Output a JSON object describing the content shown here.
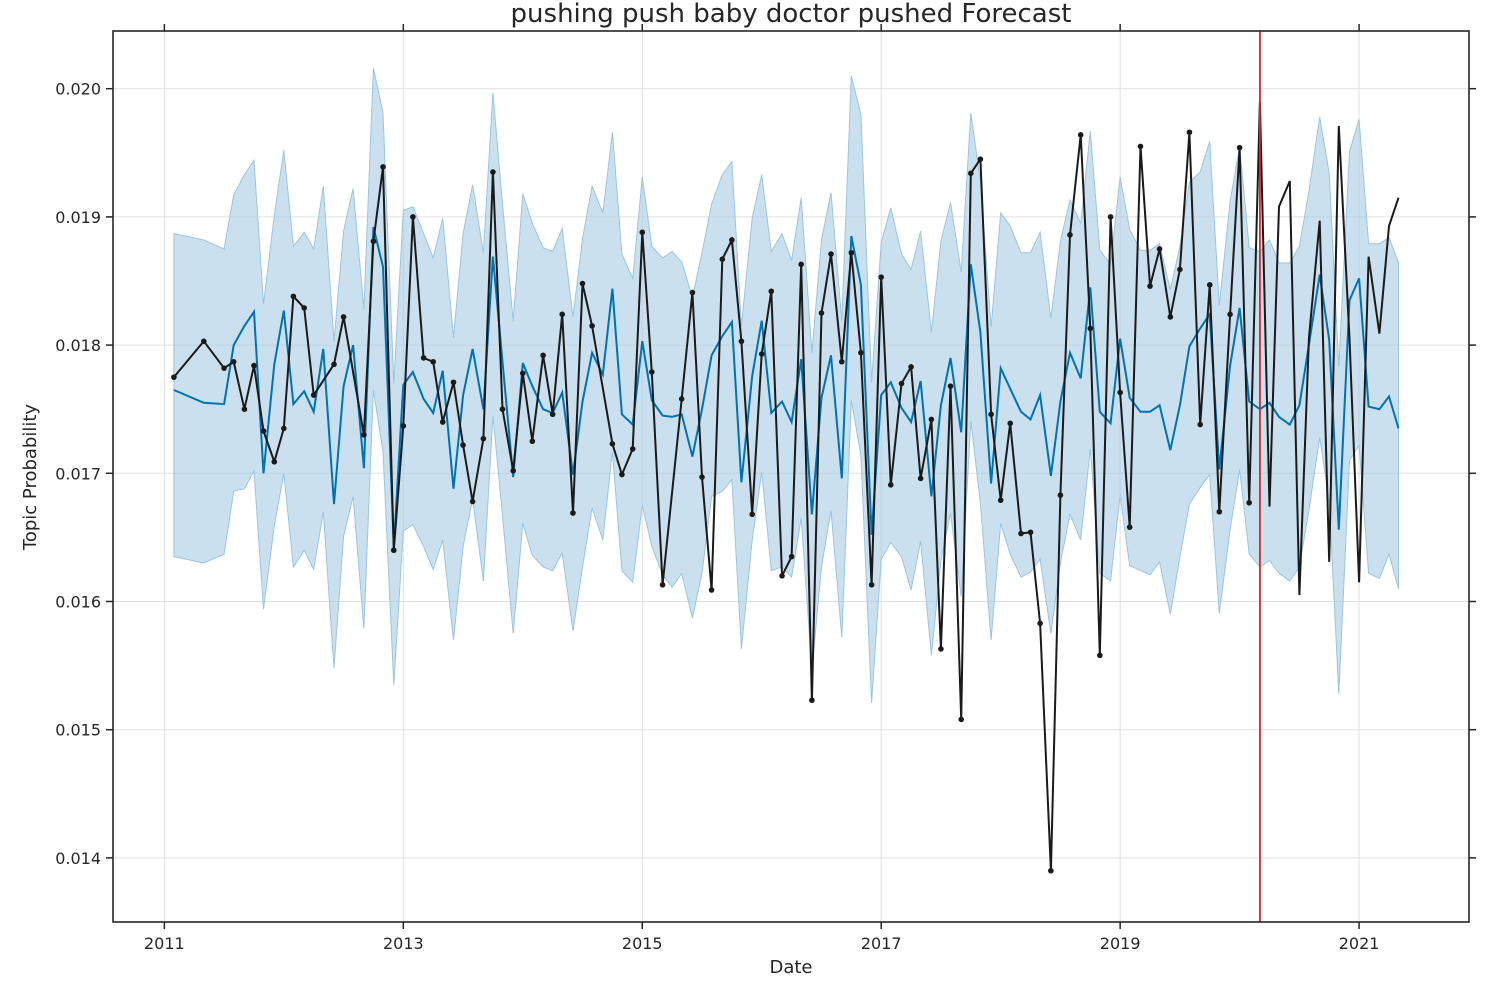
{
  "chart_data": {
    "type": "line",
    "title": "pushing push baby doctor pushed Forecast",
    "xlabel": "Date",
    "ylabel": "Topic Probability",
    "xlim": [
      2010.57,
      2021.92
    ],
    "ylim": [
      0.0135,
      0.02045
    ],
    "x_ticks": [
      2011,
      2013,
      2015,
      2017,
      2019,
      2021
    ],
    "y_ticks": [
      0.014,
      0.015,
      0.016,
      0.017,
      0.018,
      0.019,
      0.02
    ],
    "x_tick_labels": [
      "2011",
      "2013",
      "2015",
      "2017",
      "2019",
      "2021"
    ],
    "y_tick_labels": [
      "0.014",
      "0.015",
      "0.016",
      "0.017",
      "0.018",
      "0.019",
      "0.020"
    ],
    "grid": true,
    "changepoint_x": 2020.17,
    "colors": {
      "forecast": "#0072B2",
      "interval": "#a9cce3",
      "actual": "#1a1a1a",
      "changepoint": "#d62728",
      "grid": "#e0e0e0",
      "axis": "#262626"
    },
    "forecast": {
      "x": [
        2011.08,
        2011.33,
        2011.5,
        2011.58,
        2011.67,
        2011.75,
        2011.83,
        2011.92,
        2012.0,
        2012.08,
        2012.17,
        2012.25,
        2012.33,
        2012.42,
        2012.5,
        2012.58,
        2012.67,
        2012.75,
        2012.83,
        2012.92,
        2013.0,
        2013.08,
        2013.17,
        2013.25,
        2013.33,
        2013.42,
        2013.5,
        2013.58,
        2013.67,
        2013.75,
        2013.83,
        2013.92,
        2014.0,
        2014.08,
        2014.17,
        2014.25,
        2014.33,
        2014.42,
        2014.5,
        2014.58,
        2014.67,
        2014.75,
        2014.83,
        2014.92,
        2015.0,
        2015.08,
        2015.17,
        2015.25,
        2015.33,
        2015.42,
        2015.5,
        2015.58,
        2015.67,
        2015.75,
        2015.83,
        2015.92,
        2016.0,
        2016.08,
        2016.17,
        2016.25,
        2016.33,
        2016.42,
        2016.5,
        2016.58,
        2016.67,
        2016.75,
        2016.83,
        2016.92,
        2017.0,
        2017.08,
        2017.17,
        2017.25,
        2017.33,
        2017.42,
        2017.5,
        2017.58,
        2017.67,
        2017.75,
        2017.83,
        2017.92,
        2018.0,
        2018.08,
        2018.17,
        2018.25,
        2018.33,
        2018.42,
        2018.5,
        2018.58,
        2018.67,
        2018.75,
        2018.83,
        2018.92,
        2019.0,
        2019.08,
        2019.17,
        2019.25,
        2019.33,
        2019.42,
        2019.5,
        2019.58,
        2019.67,
        2019.75,
        2019.83,
        2019.92,
        2020.0,
        2020.08,
        2020.17,
        2020.25,
        2020.33,
        2020.42,
        2020.5,
        2020.58,
        2020.67,
        2020.75,
        2020.83,
        2020.92,
        2021.0,
        2021.08,
        2021.17,
        2021.25,
        2021.33
      ],
      "yhat": [
        0.01765,
        0.01755,
        0.01754,
        0.018,
        0.01815,
        0.01826,
        0.017,
        0.01785,
        0.01827,
        0.01754,
        0.01764,
        0.01748,
        0.01797,
        0.01676,
        0.01768,
        0.018,
        0.01704,
        0.01892,
        0.01861,
        0.01643,
        0.01769,
        0.01779,
        0.01758,
        0.01747,
        0.0178,
        0.01688,
        0.01761,
        0.01797,
        0.0175,
        0.01869,
        0.01787,
        0.01697,
        0.01786,
        0.01768,
        0.0175,
        0.01747,
        0.01763,
        0.01699,
        0.01756,
        0.01794,
        0.01777,
        0.01844,
        0.01746,
        0.01738,
        0.01803,
        0.01757,
        0.01745,
        0.01744,
        0.01746,
        0.01713,
        0.0175,
        0.01792,
        0.01807,
        0.01818,
        0.01693,
        0.01776,
        0.01819,
        0.01747,
        0.01756,
        0.0174,
        0.01789,
        0.01668,
        0.01759,
        0.01792,
        0.01696,
        0.01885,
        0.01847,
        0.01652,
        0.01761,
        0.01771,
        0.01751,
        0.0174,
        0.01772,
        0.01682,
        0.01753,
        0.0179,
        0.01732,
        0.01863,
        0.0181,
        0.01692,
        0.01782,
        0.01766,
        0.01748,
        0.01742,
        0.01761,
        0.01698,
        0.01756,
        0.01794,
        0.01774,
        0.01845,
        0.01748,
        0.01739,
        0.01805,
        0.01759,
        0.01748,
        0.01748,
        0.01753,
        0.01718,
        0.01753,
        0.01799,
        0.01813,
        0.01824,
        0.01703,
        0.01784,
        0.01829,
        0.01756,
        0.0175,
        0.01755,
        0.01744,
        0.01738,
        0.01753,
        0.018,
        0.01855,
        0.01804,
        0.01656,
        0.01835,
        0.01852,
        0.01752,
        0.0175,
        0.0176,
        0.01735
      ],
      "upper": [
        0.01887,
        0.01882,
        0.01875,
        0.01917,
        0.01933,
        0.01944,
        0.01832,
        0.01901,
        0.01952,
        0.01877,
        0.01888,
        0.01875,
        0.01924,
        0.01803,
        0.01889,
        0.01922,
        0.01828,
        0.02016,
        0.01981,
        0.0177,
        0.01905,
        0.01908,
        0.01887,
        0.01868,
        0.01899,
        0.01806,
        0.01887,
        0.01925,
        0.01872,
        0.01997,
        0.0191,
        0.01819,
        0.01918,
        0.01895,
        0.01876,
        0.01873,
        0.01891,
        0.01822,
        0.01883,
        0.01924,
        0.01903,
        0.01966,
        0.01871,
        0.01852,
        0.01931,
        0.01877,
        0.01868,
        0.01873,
        0.01865,
        0.01837,
        0.01872,
        0.0191,
        0.01933,
        0.01943,
        0.01815,
        0.01899,
        0.01933,
        0.01873,
        0.01887,
        0.01866,
        0.01915,
        0.01794,
        0.01882,
        0.01919,
        0.01819,
        0.0201,
        0.0198,
        0.01771,
        0.0188,
        0.01907,
        0.01871,
        0.01859,
        0.01889,
        0.0181,
        0.01881,
        0.01911,
        0.01857,
        0.01981,
        0.01928,
        0.01814,
        0.01903,
        0.01893,
        0.01872,
        0.01872,
        0.01888,
        0.01821,
        0.01881,
        0.01913,
        0.01895,
        0.01967,
        0.01874,
        0.01863,
        0.01931,
        0.0189,
        0.01874,
        0.01874,
        0.01879,
        0.01843,
        0.01877,
        0.01927,
        0.01935,
        0.01959,
        0.01831,
        0.01912,
        0.01955,
        0.01876,
        0.01873,
        0.01882,
        0.01864,
        0.01864,
        0.01877,
        0.0192,
        0.01978,
        0.01934,
        0.01783,
        0.01951,
        0.01976,
        0.01879,
        0.01879,
        0.01884,
        0.01864
      ],
      "lower": [
        0.01635,
        0.0163,
        0.01637,
        0.01686,
        0.01688,
        0.01702,
        0.01594,
        0.01659,
        0.017,
        0.01627,
        0.0164,
        0.01625,
        0.0167,
        0.01548,
        0.01651,
        0.01682,
        0.01579,
        0.01765,
        0.01717,
        0.01535,
        0.01655,
        0.0166,
        0.01643,
        0.01625,
        0.01648,
        0.0157,
        0.01643,
        0.0168,
        0.01616,
        0.01745,
        0.01667,
        0.01575,
        0.01661,
        0.01636,
        0.01627,
        0.01624,
        0.01638,
        0.01577,
        0.01627,
        0.01673,
        0.01648,
        0.01717,
        0.01624,
        0.01615,
        0.01675,
        0.01643,
        0.01621,
        0.01611,
        0.01622,
        0.01587,
        0.01622,
        0.01682,
        0.01686,
        0.01695,
        0.01563,
        0.01648,
        0.01701,
        0.01624,
        0.01627,
        0.01619,
        0.01665,
        0.01546,
        0.01627,
        0.01671,
        0.01572,
        0.01757,
        0.01714,
        0.01521,
        0.01633,
        0.01646,
        0.01635,
        0.01609,
        0.01647,
        0.01558,
        0.01632,
        0.01669,
        0.01604,
        0.01741,
        0.01677,
        0.0157,
        0.01661,
        0.01637,
        0.01619,
        0.01623,
        0.01633,
        0.01575,
        0.0163,
        0.01668,
        0.01648,
        0.01719,
        0.01622,
        0.01616,
        0.01683,
        0.01628,
        0.01624,
        0.01621,
        0.01631,
        0.0159,
        0.01635,
        0.01676,
        0.01689,
        0.01699,
        0.01591,
        0.01656,
        0.01703,
        0.01637,
        0.01627,
        0.01632,
        0.01622,
        0.01616,
        0.01627,
        0.01671,
        0.01728,
        0.01678,
        0.01528,
        0.0171,
        0.01722,
        0.01622,
        0.01618,
        0.01637,
        0.0161
      ]
    },
    "actual": {
      "points_x": [
        2011.08,
        2011.33,
        2011.5,
        2011.58,
        2011.67,
        2011.75,
        2011.83,
        2011.92,
        2012.0,
        2012.08,
        2012.17,
        2012.25,
        2012.42,
        2012.5,
        2012.67,
        2012.75,
        2012.83,
        2012.92,
        2013.0,
        2013.08,
        2013.17,
        2013.25,
        2013.33,
        2013.42,
        2013.5,
        2013.58,
        2013.67,
        2013.75,
        2013.83,
        2013.92,
        2014.0,
        2014.08,
        2014.17,
        2014.25,
        2014.33,
        2014.42,
        2014.5,
        2014.58,
        2014.75,
        2014.83,
        2014.92,
        2015.0,
        2015.08,
        2015.17,
        2015.33,
        2015.42,
        2015.5,
        2015.58,
        2015.67,
        2015.75,
        2015.83,
        2015.92,
        2016.0,
        2016.08,
        2016.17,
        2016.25,
        2016.33,
        2016.42,
        2016.5,
        2016.58,
        2016.67,
        2016.75,
        2016.83,
        2016.92,
        2017.0,
        2017.08,
        2017.17,
        2017.25,
        2017.33,
        2017.42,
        2017.5,
        2017.58,
        2017.67,
        2017.75,
        2017.83,
        2017.92,
        2018.0,
        2018.08,
        2018.17,
        2018.25,
        2018.33,
        2018.42,
        2018.5,
        2018.58,
        2018.67,
        2018.75,
        2018.83,
        2018.92,
        2019.0,
        2019.08,
        2019.17,
        2019.25,
        2019.33,
        2019.42,
        2019.5,
        2019.58,
        2019.67,
        2019.75,
        2019.83,
        2019.92,
        2020.0,
        2020.08
      ],
      "points_y": [
        0.01775,
        0.01803,
        0.01782,
        0.01787,
        0.0175,
        0.01784,
        0.01733,
        0.01709,
        0.01735,
        0.01838,
        0.01829,
        0.01761,
        0.01785,
        0.01822,
        0.0173,
        0.01881,
        0.01939,
        0.0164,
        0.01737,
        0.019,
        0.0179,
        0.01787,
        0.0174,
        0.01771,
        0.01722,
        0.01678,
        0.01727,
        0.01935,
        0.0175,
        0.01702,
        0.01778,
        0.01725,
        0.01792,
        0.01746,
        0.01824,
        0.01669,
        0.01848,
        0.01815,
        0.01723,
        0.01699,
        0.01719,
        0.01888,
        0.01779,
        0.01613,
        0.01758,
        0.01841,
        0.01697,
        0.01609,
        0.01867,
        0.01882,
        0.01803,
        0.01668,
        0.01793,
        0.01842,
        0.0162,
        0.01635,
        0.01863,
        0.01523,
        0.01825,
        0.01871,
        0.01787,
        0.01872,
        0.01794,
        0.01613,
        0.01853,
        0.01691,
        0.0177,
        0.01783,
        0.01696,
        0.01742,
        0.01563,
        0.01768,
        0.01508,
        0.01934,
        0.01945,
        0.01746,
        0.01679,
        0.01739,
        0.01653,
        0.01654,
        0.01583,
        0.0139,
        0.01683,
        0.01886,
        0.01964,
        0.01813,
        0.01558,
        0.019,
        0.01763,
        0.01658,
        0.01955,
        0.01846,
        0.01875,
        0.01822,
        0.01859,
        0.01966,
        0.01738,
        0.01847,
        0.0167,
        0.01824,
        0.01954,
        0.01677
      ],
      "line_x": [
        2011.08,
        2011.33,
        2011.5,
        2011.58,
        2011.67,
        2011.75,
        2011.83,
        2011.92,
        2012.0,
        2012.08,
        2012.17,
        2012.25,
        2012.42,
        2012.5,
        2012.67,
        2012.75,
        2012.83,
        2012.92,
        2013.0,
        2013.08,
        2013.17,
        2013.25,
        2013.33,
        2013.42,
        2013.5,
        2013.58,
        2013.67,
        2013.75,
        2013.83,
        2013.92,
        2014.0,
        2014.08,
        2014.17,
        2014.25,
        2014.33,
        2014.42,
        2014.5,
        2014.58,
        2014.75,
        2014.83,
        2014.92,
        2015.0,
        2015.08,
        2015.17,
        2015.33,
        2015.42,
        2015.5,
        2015.58,
        2015.67,
        2015.75,
        2015.83,
        2015.92,
        2016.0,
        2016.08,
        2016.17,
        2016.25,
        2016.33,
        2016.42,
        2016.5,
        2016.58,
        2016.67,
        2016.75,
        2016.83,
        2016.92,
        2017.0,
        2017.08,
        2017.17,
        2017.25,
        2017.33,
        2017.42,
        2017.5,
        2017.58,
        2017.67,
        2017.75,
        2017.83,
        2017.92,
        2018.0,
        2018.08,
        2018.17,
        2018.25,
        2018.33,
        2018.42,
        2018.5,
        2018.58,
        2018.67,
        2018.75,
        2018.83,
        2018.92,
        2019.0,
        2019.08,
        2019.17,
        2019.25,
        2019.33,
        2019.42,
        2019.5,
        2019.58,
        2019.67,
        2019.75,
        2019.83,
        2019.92,
        2020.0,
        2020.08,
        2020.17,
        2020.25,
        2020.33,
        2020.42,
        2020.5,
        2020.58,
        2020.67,
        2020.75,
        2020.83,
        2020.92,
        2021.0,
        2021.08,
        2021.17,
        2021.25,
        2021.33,
        2021.42
      ],
      "line_y": [
        0.01775,
        0.01803,
        0.01782,
        0.01787,
        0.0175,
        0.01784,
        0.01733,
        0.01709,
        0.01735,
        0.01838,
        0.01829,
        0.01761,
        0.01785,
        0.01822,
        0.0173,
        0.01881,
        0.01939,
        0.0164,
        0.01737,
        0.019,
        0.0179,
        0.01787,
        0.0174,
        0.01771,
        0.01722,
        0.01678,
        0.01727,
        0.01935,
        0.0175,
        0.01702,
        0.01778,
        0.01725,
        0.01792,
        0.01746,
        0.01824,
        0.01669,
        0.01848,
        0.01815,
        0.01723,
        0.01699,
        0.01719,
        0.01888,
        0.01779,
        0.01613,
        0.01758,
        0.01841,
        0.01697,
        0.01609,
        0.01867,
        0.01882,
        0.01803,
        0.01668,
        0.01793,
        0.01842,
        0.0162,
        0.01635,
        0.01863,
        0.01523,
        0.01825,
        0.01871,
        0.01787,
        0.01872,
        0.01794,
        0.01613,
        0.01853,
        0.01691,
        0.0177,
        0.01783,
        0.01696,
        0.01742,
        0.01563,
        0.01768,
        0.01508,
        0.01934,
        0.01945,
        0.01746,
        0.01679,
        0.01739,
        0.01653,
        0.01654,
        0.01583,
        0.0139,
        0.01683,
        0.01886,
        0.01964,
        0.01813,
        0.01558,
        0.019,
        0.01763,
        0.01658,
        0.01955,
        0.01846,
        0.01875,
        0.01822,
        0.01859,
        0.01966,
        0.01738,
        0.01847,
        0.0167,
        0.01824,
        0.01954,
        0.01677,
        0.0199,
        0.01674,
        0.01908,
        0.01928,
        0.01605,
        0.01805,
        0.01897,
        0.01631,
        0.01971,
        0.01805,
        0.01615,
        0.01869,
        0.01809,
        0.01893,
        0.01915
      ]
    }
  }
}
